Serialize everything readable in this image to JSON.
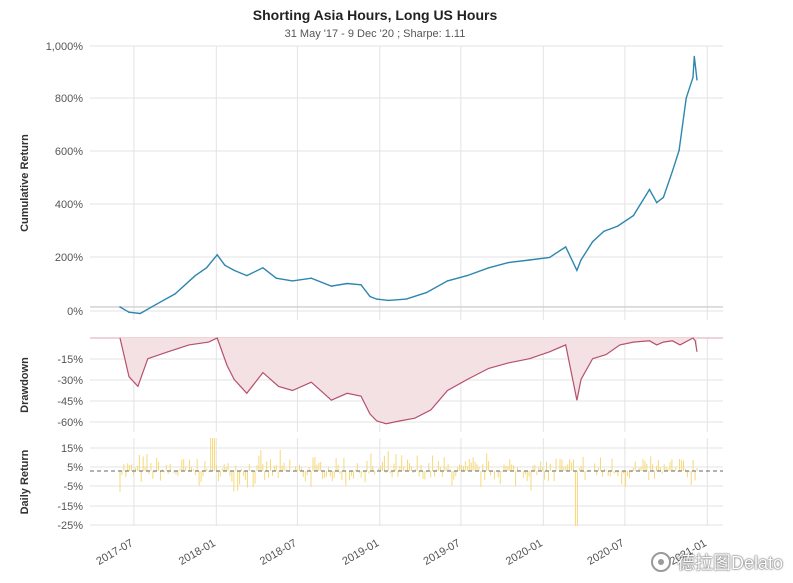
{
  "chart_data": {
    "title": "Shorting Asia Hours, Long US Hours",
    "subtitle": "31 May '17 -  9 Dec '20 ;  Sharpe: 1.11",
    "x_tick_labels": [
      "2017-07",
      "2018-01",
      "2018-07",
      "2019-01",
      "2019-07",
      "2020-01",
      "2020-07",
      "2021-01"
    ],
    "x_range": [
      "2017-05-31",
      "2020-12-09"
    ],
    "panels": [
      {
        "type": "line",
        "ylabel": "Cumulative Return",
        "yticks": [
          "1,000%",
          "800%",
          "600%",
          "400%",
          "200%",
          "0%"
        ],
        "ylim": [
          -50,
          1000
        ],
        "color": "#2e86b0",
        "series": {
          "x": [
            "2017-05-31",
            "2017-06-20",
            "2017-07-15",
            "2017-08-20",
            "2017-10-01",
            "2017-11-15",
            "2017-12-10",
            "2018-01-03",
            "2018-01-20",
            "2018-02-10",
            "2018-03-10",
            "2018-04-15",
            "2018-05-15",
            "2018-06-20",
            "2018-08-01",
            "2018-09-15",
            "2018-10-20",
            "2018-11-20",
            "2018-12-10",
            "2018-12-25",
            "2019-01-20",
            "2019-03-01",
            "2019-04-15",
            "2019-06-01",
            "2019-07-15",
            "2019-09-01",
            "2019-10-15",
            "2019-12-01",
            "2020-01-15",
            "2020-02-20",
            "2020-03-16",
            "2020-03-25",
            "2020-04-20",
            "2020-05-15",
            "2020-06-15",
            "2020-07-20",
            "2020-08-25",
            "2020-09-10",
            "2020-09-25",
            "2020-10-15",
            "2020-10-30",
            "2020-11-15",
            "2020-11-30",
            "2020-12-03",
            "2020-12-09"
          ],
          "y": [
            0,
            -20,
            -25,
            10,
            50,
            120,
            150,
            200,
            160,
            140,
            120,
            150,
            110,
            100,
            110,
            80,
            90,
            85,
            40,
            30,
            25,
            30,
            55,
            100,
            120,
            150,
            170,
            180,
            190,
            230,
            140,
            180,
            250,
            290,
            310,
            350,
            450,
            400,
            420,
            520,
            600,
            800,
            880,
            960,
            870
          ]
        }
      },
      {
        "type": "area",
        "ylabel": "Drawdown",
        "yticks": [
          "-15%",
          "-30%",
          "-45%",
          "-60%"
        ],
        "ylim": [
          -68,
          0
        ],
        "color": "#b5506f",
        "fill": "#f3e1e4",
        "series": {
          "x": [
            "2017-05-31",
            "2017-06-20",
            "2017-07-10",
            "2017-08-01",
            "2017-09-15",
            "2017-11-01",
            "2017-12-15",
            "2018-01-03",
            "2018-01-25",
            "2018-02-10",
            "2018-03-10",
            "2018-04-15",
            "2018-05-20",
            "2018-06-20",
            "2018-08-01",
            "2018-09-15",
            "2018-10-20",
            "2018-11-20",
            "2018-12-10",
            "2018-12-25",
            "2019-01-15",
            "2019-02-15",
            "2019-03-20",
            "2019-04-25",
            "2019-06-01",
            "2019-07-15",
            "2019-09-01",
            "2019-10-15",
            "2019-12-01",
            "2020-01-15",
            "2020-02-20",
            "2020-03-16",
            "2020-03-25",
            "2020-04-20",
            "2020-05-20",
            "2020-06-20",
            "2020-07-20",
            "2020-08-25",
            "2020-09-10",
            "2020-09-25",
            "2020-10-15",
            "2020-11-01",
            "2020-11-30",
            "2020-12-05",
            "2020-12-09"
          ],
          "y": [
            0,
            -28,
            -35,
            -15,
            -10,
            -5,
            -3,
            0,
            -20,
            -30,
            -40,
            -25,
            -35,
            -38,
            -32,
            -45,
            -40,
            -42,
            -55,
            -60,
            -62,
            -60,
            -58,
            -52,
            -38,
            -30,
            -22,
            -18,
            -15,
            -10,
            -5,
            -45,
            -30,
            -15,
            -12,
            -5,
            -3,
            -2,
            -5,
            -3,
            -2,
            -5,
            0,
            -2,
            -10
          ]
        }
      },
      {
        "type": "bar",
        "ylabel": "Daily Return",
        "yticks": [
          "15%",
          "5%",
          "-5%",
          "-15%",
          "-25%"
        ],
        "ylim": [
          -25,
          15
        ],
        "color": "#f6d878",
        "mean_line": 0,
        "value_range_typical": [
          -10,
          10
        ],
        "value_extremes": {
          "max": 15,
          "min": -25
        }
      }
    ]
  },
  "watermark": {
    "text": "德拉图Delato"
  }
}
